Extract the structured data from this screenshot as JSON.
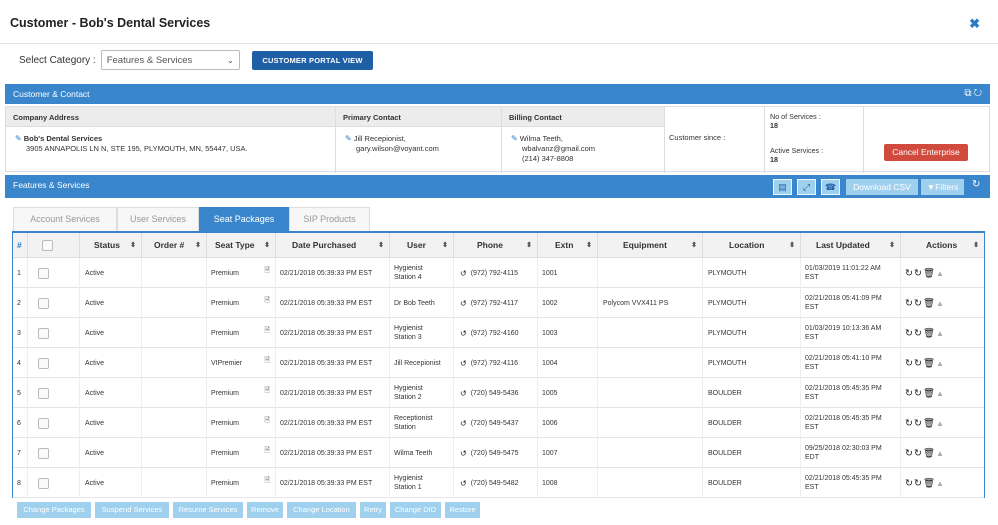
{
  "modal": {
    "title": "Customer - Bob's Dental Services",
    "close": "✖"
  },
  "category": {
    "label": "Select Category :",
    "selected": "Features & Services",
    "portal_button": "CUSTOMER PORTAL VIEW"
  },
  "customer_bar": {
    "title": "Customer & Contact"
  },
  "contact": {
    "company_header": "Company Address",
    "company_name": "Bob's Dental Services",
    "company_address": "3905 ANNAPOLIS LN N, STE 195, PLYMOUTH, MN, 55447, USA.",
    "primary_header": "Primary Contact",
    "primary_name": "Jill Recepionist,",
    "primary_email": "gary.wilson@voyant.com",
    "billing_header": "Billing Contact",
    "billing_name": "Wilma Teeth,",
    "billing_email": "wbalvanz@gmail.com",
    "billing_phone": "(214) 347-8808",
    "since_label": "Customer since :",
    "no_services_label": "No of Services :",
    "no_services_value": "18",
    "active_services_label": "Active Services :",
    "active_services_value": "18",
    "cancel_button": "Cancel Enterprise"
  },
  "features_bar": {
    "title": "Features & Services",
    "download": "Download CSV",
    "filters": "▼Filters"
  },
  "tabs": [
    {
      "label": "Account Services"
    },
    {
      "label": "User Services"
    },
    {
      "label": "Seat Packages"
    },
    {
      "label": "SIP Products"
    }
  ],
  "table": {
    "columns": [
      "#",
      "",
      "Status",
      "Order #",
      "Seat Type",
      "Date Purchased",
      "User",
      "Phone",
      "Extn",
      "Equipment",
      "Location",
      "Last Updated",
      "Actions"
    ],
    "rows": [
      {
        "n": "1",
        "status": "Active",
        "order": "",
        "seat": "Premium",
        "date": "02/21/2018 05:39:33 PM EST",
        "user1": "Hygienist",
        "user2": "Station 4",
        "phone": "(972) 792-4115",
        "extn": "1001",
        "equip": "",
        "loc": "PLYMOUTH",
        "upd1": "01/03/2019 11:01:22 AM",
        "upd2": "EST"
      },
      {
        "n": "2",
        "status": "Active",
        "order": "",
        "seat": "Premium",
        "date": "02/21/2018 05:39:33 PM EST",
        "user1": "Dr Bob Teeth",
        "user2": "",
        "phone": "(972) 792-4117",
        "extn": "1002",
        "equip": "Polycom VVX411 PS",
        "loc": "PLYMOUTH",
        "upd1": "02/21/2018 05:41:09 PM",
        "upd2": "EST"
      },
      {
        "n": "3",
        "status": "Active",
        "order": "",
        "seat": "Premium",
        "date": "02/21/2018 05:39:33 PM EST",
        "user1": "Hygienist",
        "user2": "Station 3",
        "phone": "(972) 792-4160",
        "extn": "1003",
        "equip": "",
        "loc": "PLYMOUTH",
        "upd1": "01/03/2019 10:13:36 AM",
        "upd2": "EST"
      },
      {
        "n": "4",
        "status": "Active",
        "order": "",
        "seat": "VIPremier",
        "date": "02/21/2018 05:39:33 PM EST",
        "user1": "Jill Recepionist",
        "user2": "",
        "phone": "(972) 792-4116",
        "extn": "1004",
        "equip": "",
        "loc": "PLYMOUTH",
        "upd1": "02/21/2018 05:41:10 PM",
        "upd2": "EST"
      },
      {
        "n": "5",
        "status": "Active",
        "order": "",
        "seat": "Premium",
        "date": "02/21/2018 05:39:33 PM EST",
        "user1": "Hygienist",
        "user2": "Station 2",
        "phone": "(720) 549-5436",
        "extn": "1005",
        "equip": "",
        "loc": "BOULDER",
        "upd1": "02/21/2018 05:45:35 PM",
        "upd2": "EST"
      },
      {
        "n": "6",
        "status": "Active",
        "order": "",
        "seat": "Premium",
        "date": "02/21/2018 05:39:33 PM EST",
        "user1": "Receptionist",
        "user2": "Station",
        "phone": "(720) 549-5437",
        "extn": "1006",
        "equip": "",
        "loc": "BOULDER",
        "upd1": "02/21/2018 05:45:35 PM",
        "upd2": "EST"
      },
      {
        "n": "7",
        "status": "Active",
        "order": "",
        "seat": "Premium",
        "date": "02/21/2018 05:39:33 PM EST",
        "user1": "Wilma Teeth",
        "user2": "",
        "phone": "(720) 549-5475",
        "extn": "1007",
        "equip": "",
        "loc": "BOULDER",
        "upd1": "09/25/2018 02:30:03 PM",
        "upd2": "EDT"
      },
      {
        "n": "8",
        "status": "Active",
        "order": "",
        "seat": "Premium",
        "date": "02/21/2018 05:39:33 PM EST",
        "user1": "Hygienist",
        "user2": "Station 1",
        "phone": "(720) 549-5482",
        "extn": "1008",
        "equip": "",
        "loc": "BOULDER",
        "upd1": "02/21/2018 05:45:35 PM",
        "upd2": "EST"
      }
    ]
  },
  "bottom_buttons": [
    "Change Packages",
    "Suspend Services",
    "Resume Services",
    "Remove",
    "Change Location",
    "Retry",
    "Change DID",
    "Restore"
  ],
  "colors": {
    "primary": "#3a86cc",
    "dark_button": "#1f5fa6",
    "danger": "#d04a3e",
    "disabled": "#9fd0ee"
  },
  "icons": {
    "edit": "edit-icon",
    "history": "history-icon",
    "refresh": "refresh-icon",
    "reset": "reset-icon",
    "delete": "trash-icon",
    "warning": "warning-icon",
    "document": "document-icon"
  }
}
